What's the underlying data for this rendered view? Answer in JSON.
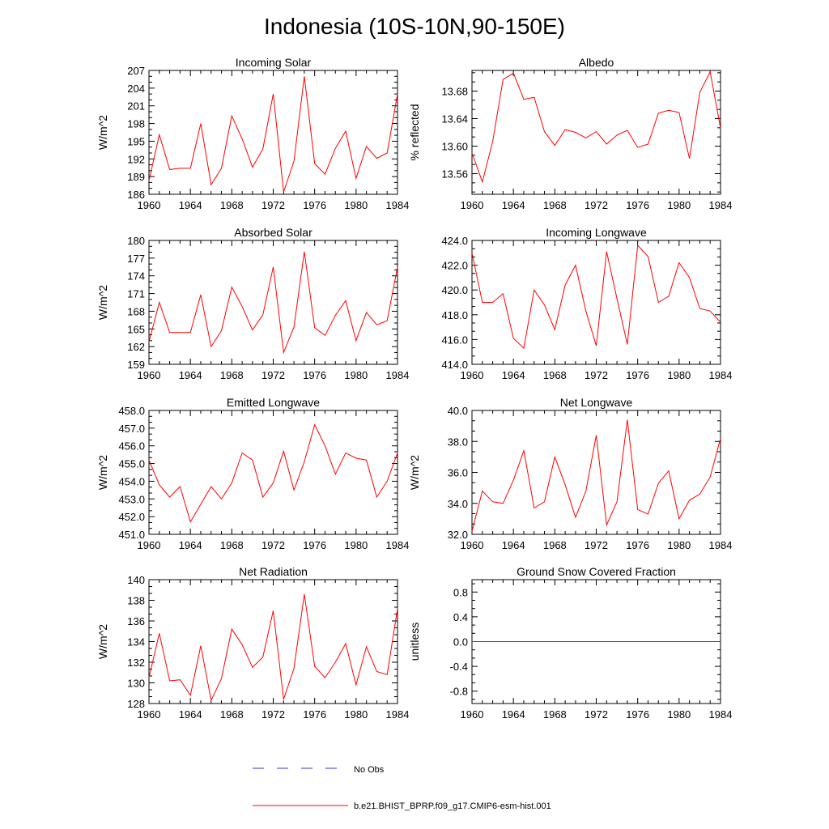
{
  "title": "Indonesia (10S-10N,90-150E)",
  "legend": {
    "obs_label": "No Obs",
    "model_label": "b.e21.BHIST_BPRP.f09_g17.CMIP6-esm-hist.001",
    "obs_color": "#3333cc",
    "model_color": "#ff0000"
  },
  "chart_data": [
    {
      "type": "line",
      "title": "Incoming Solar",
      "ylabel": "W/m^2",
      "xlim": [
        1960,
        1984
      ],
      "ylim": [
        186,
        207
      ],
      "xticks": [
        1960,
        1964,
        1968,
        1972,
        1976,
        1980,
        1984
      ],
      "yticks": [
        186,
        189,
        192,
        195,
        198,
        201,
        204,
        207
      ],
      "ytick_labels": [
        "186",
        "189",
        "192",
        "195",
        "198",
        "201",
        "204",
        "207"
      ],
      "x": [
        1960,
        1961,
        1962,
        1963,
        1964,
        1965,
        1966,
        1967,
        1968,
        1969,
        1970,
        1971,
        1972,
        1973,
        1974,
        1975,
        1976,
        1977,
        1978,
        1979,
        1980,
        1981,
        1982,
        1983,
        1984
      ],
      "series": [
        {
          "values": [
            188.3,
            196.1,
            190.2,
            190.4,
            190.4,
            198.0,
            187.6,
            190.4,
            199.3,
            195.4,
            190.6,
            193.7,
            203.0,
            186.4,
            191.6,
            206.0,
            191.2,
            189.4,
            193.8,
            196.7,
            188.7,
            194.1,
            192.1,
            193.0,
            203.0
          ]
        }
      ]
    },
    {
      "type": "line",
      "title": "Albedo",
      "ylabel": "% reflected",
      "xlim": [
        1960,
        1984
      ],
      "ylim": [
        13.53,
        13.71
      ],
      "xticks": [
        1960,
        1964,
        1968,
        1972,
        1976,
        1980,
        1984
      ],
      "yticks": [
        13.56,
        13.6,
        13.64,
        13.68
      ],
      "ytick_labels": [
        "13.56",
        "13.60",
        "13.64",
        "13.68"
      ],
      "x": [
        1960,
        1961,
        1962,
        1963,
        1964,
        1965,
        1966,
        1967,
        1968,
        1969,
        1970,
        1971,
        1972,
        1973,
        1974,
        1975,
        1976,
        1977,
        1978,
        1979,
        1980,
        1981,
        1982,
        1983,
        1984
      ],
      "series": [
        {
          "values": [
            13.59,
            13.548,
            13.607,
            13.697,
            13.706,
            13.668,
            13.671,
            13.621,
            13.601,
            13.624,
            13.62,
            13.612,
            13.621,
            13.603,
            13.616,
            13.623,
            13.598,
            13.603,
            13.648,
            13.652,
            13.649,
            13.582,
            13.678,
            13.708,
            13.626
          ]
        }
      ]
    },
    {
      "type": "line",
      "title": "Absorbed Solar",
      "ylabel": "W/m^2",
      "xlim": [
        1960,
        1984
      ],
      "ylim": [
        159,
        180
      ],
      "xticks": [
        1960,
        1964,
        1968,
        1972,
        1976,
        1980,
        1984
      ],
      "yticks": [
        159,
        162,
        165,
        168,
        171,
        174,
        177,
        180
      ],
      "ytick_labels": [
        "159",
        "162",
        "165",
        "168",
        "171",
        "174",
        "177",
        "180"
      ],
      "x": [
        1960,
        1961,
        1962,
        1963,
        1964,
        1965,
        1966,
        1967,
        1968,
        1969,
        1970,
        1971,
        1972,
        1973,
        1974,
        1975,
        1976,
        1977,
        1978,
        1979,
        1980,
        1981,
        1982,
        1983,
        1984
      ],
      "series": [
        {
          "values": [
            162.8,
            169.5,
            164.4,
            164.4,
            164.4,
            170.8,
            162.0,
            164.7,
            172.1,
            168.8,
            164.8,
            167.4,
            175.5,
            161.0,
            165.3,
            178.1,
            165.2,
            163.9,
            167.3,
            169.8,
            163.0,
            167.8,
            165.7,
            166.4,
            175.5
          ]
        }
      ]
    },
    {
      "type": "line",
      "title": "Incoming Longwave",
      "ylabel": "",
      "xlim": [
        1960,
        1984
      ],
      "ylim": [
        414,
        424
      ],
      "xticks": [
        1960,
        1964,
        1968,
        1972,
        1976,
        1980,
        1984
      ],
      "yticks": [
        414,
        416,
        418,
        420,
        422,
        424
      ],
      "ytick_labels": [
        "414.0",
        "416.0",
        "418.0",
        "420.0",
        "422.0",
        "424.0"
      ],
      "x": [
        1960,
        1961,
        1962,
        1963,
        1964,
        1965,
        1966,
        1967,
        1968,
        1969,
        1970,
        1971,
        1972,
        1973,
        1974,
        1975,
        1976,
        1977,
        1978,
        1979,
        1980,
        1981,
        1982,
        1983,
        1984
      ],
      "series": [
        {
          "values": [
            423.0,
            419.0,
            419.0,
            419.7,
            416.1,
            415.3,
            420.0,
            418.8,
            416.8,
            420.4,
            422.0,
            418.3,
            415.5,
            423.1,
            419.3,
            415.6,
            423.6,
            422.7,
            419.0,
            419.5,
            422.2,
            421.0,
            418.5,
            418.3,
            417.4
          ]
        }
      ]
    },
    {
      "type": "line",
      "title": "Emitted Longwave",
      "ylabel": "W/m^2",
      "xlim": [
        1960,
        1984
      ],
      "ylim": [
        451,
        458
      ],
      "xticks": [
        1960,
        1964,
        1968,
        1972,
        1976,
        1980,
        1984
      ],
      "yticks": [
        451,
        452,
        453,
        454,
        455,
        456,
        457,
        458
      ],
      "ytick_labels": [
        "451.0",
        "452.0",
        "453.0",
        "454.0",
        "455.0",
        "456.0",
        "457.0",
        "458.0"
      ],
      "x": [
        1960,
        1961,
        1962,
        1963,
        1964,
        1965,
        1966,
        1967,
        1968,
        1969,
        1970,
        1971,
        1972,
        1973,
        1974,
        1975,
        1976,
        1977,
        1978,
        1979,
        1980,
        1981,
        1982,
        1983,
        1984
      ],
      "series": [
        {
          "values": [
            455.2,
            453.8,
            453.1,
            453.7,
            451.7,
            452.7,
            453.7,
            453.0,
            453.9,
            455.6,
            455.2,
            453.1,
            453.9,
            455.7,
            453.5,
            455.1,
            457.2,
            456.0,
            454.4,
            455.6,
            455.3,
            455.2,
            453.1,
            454.0,
            455.6
          ]
        }
      ]
    },
    {
      "type": "line",
      "title": "Net Longwave",
      "ylabel": "W/m^2",
      "xlim": [
        1960,
        1984
      ],
      "ylim": [
        32,
        40
      ],
      "xticks": [
        1960,
        1964,
        1968,
        1972,
        1976,
        1980,
        1984
      ],
      "yticks": [
        32,
        34,
        36,
        38,
        40
      ],
      "ytick_labels": [
        "32.0",
        "34.0",
        "36.0",
        "38.0",
        "40.0"
      ],
      "x": [
        1960,
        1961,
        1962,
        1963,
        1964,
        1965,
        1966,
        1967,
        1968,
        1969,
        1970,
        1971,
        1972,
        1973,
        1974,
        1975,
        1976,
        1977,
        1978,
        1979,
        1980,
        1981,
        1982,
        1983,
        1984
      ],
      "series": [
        {
          "values": [
            32.2,
            34.8,
            34.1,
            34.0,
            35.5,
            37.4,
            33.7,
            34.1,
            37.0,
            35.2,
            33.1,
            34.8,
            38.4,
            32.6,
            34.1,
            39.4,
            33.6,
            33.3,
            35.3,
            36.1,
            33.0,
            34.2,
            34.6,
            35.7,
            38.2
          ]
        }
      ]
    },
    {
      "type": "line",
      "title": "Net Radiation",
      "ylabel": "W/m^2",
      "xlim": [
        1960,
        1984
      ],
      "ylim": [
        128,
        140
      ],
      "xticks": [
        1960,
        1964,
        1968,
        1972,
        1976,
        1980,
        1984
      ],
      "yticks": [
        128,
        130,
        132,
        134,
        136,
        138,
        140
      ],
      "ytick_labels": [
        "128",
        "130",
        "132",
        "134",
        "136",
        "138",
        "140"
      ],
      "x": [
        1960,
        1961,
        1962,
        1963,
        1964,
        1965,
        1966,
        1967,
        1968,
        1969,
        1970,
        1971,
        1972,
        1973,
        1974,
        1975,
        1976,
        1977,
        1978,
        1979,
        1980,
        1981,
        1982,
        1983,
        1984
      ],
      "series": [
        {
          "values": [
            130.5,
            134.8,
            130.2,
            130.3,
            128.8,
            133.6,
            128.3,
            130.4,
            135.2,
            133.7,
            131.5,
            132.5,
            137.0,
            128.4,
            131.4,
            138.6,
            131.6,
            130.5,
            132.0,
            133.8,
            129.8,
            133.5,
            131.1,
            130.8,
            137.2
          ]
        }
      ]
    },
    {
      "type": "line",
      "title": "Ground Snow Covered Fraction",
      "ylabel": "unitless",
      "xlim": [
        1960,
        1984
      ],
      "ylim": [
        -1,
        1
      ],
      "xticks": [
        1960,
        1964,
        1968,
        1972,
        1976,
        1980,
        1984
      ],
      "yticks": [
        -0.8,
        -0.4,
        0,
        0.4,
        0.8
      ],
      "ytick_labels": [
        "-0.8",
        "-0.4",
        "0.0",
        "0.4",
        "0.8"
      ],
      "x": [
        1960,
        1961,
        1962,
        1963,
        1964,
        1965,
        1966,
        1967,
        1968,
        1969,
        1970,
        1971,
        1972,
        1973,
        1974,
        1975,
        1976,
        1977,
        1978,
        1979,
        1980,
        1981,
        1982,
        1983,
        1984
      ],
      "series": [
        {
          "values": [
            0,
            0,
            0,
            0,
            0,
            0,
            0,
            0,
            0,
            0,
            0,
            0,
            0,
            0,
            0,
            0,
            0,
            0,
            0,
            0,
            0,
            0,
            0,
            0,
            0
          ]
        }
      ]
    }
  ]
}
